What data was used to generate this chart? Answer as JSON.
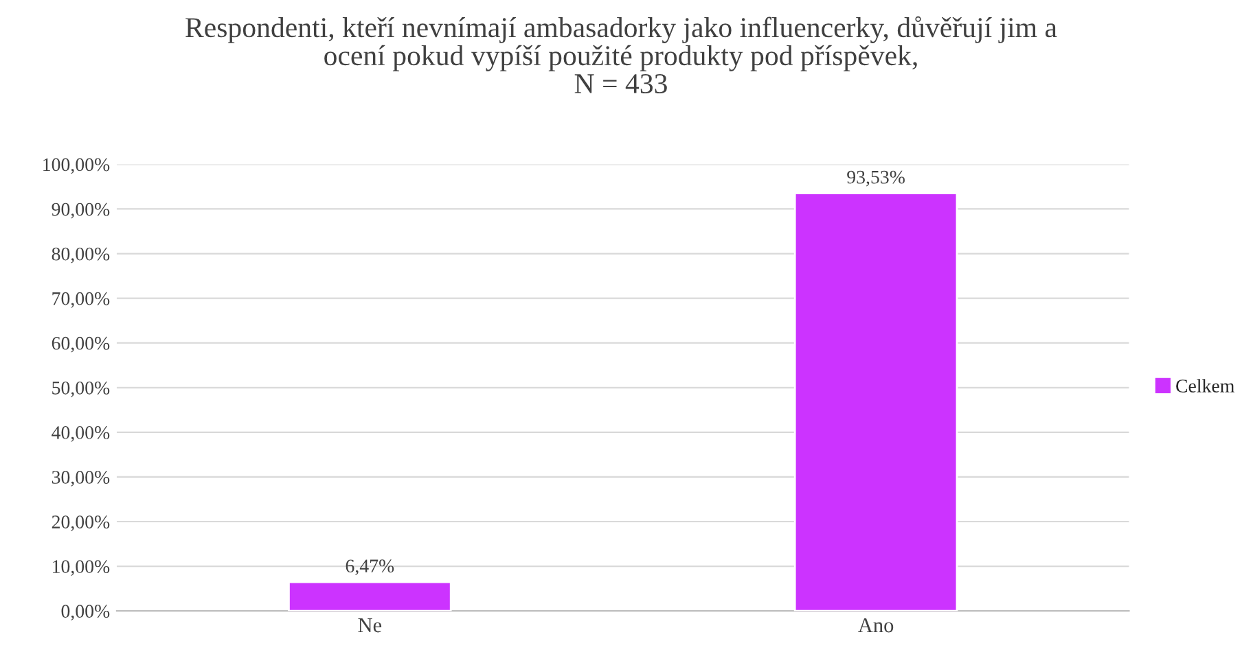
{
  "chart_data": {
    "type": "bar",
    "title": "Respondenti, kteří nevnímají ambasadorky jako influencerky, důvěřují jim a\nocení pokud vypíší použité produkty pod příspěvek,\nN = 433",
    "categories": [
      "Ne",
      "Ano"
    ],
    "series": [
      {
        "name": "Celkem",
        "color": "#cc33ff",
        "values": [
          6.47,
          93.53
        ],
        "value_labels": [
          "6,47%",
          "93,53%"
        ]
      }
    ],
    "ylim": [
      0,
      100
    ],
    "yticks": [
      {
        "value": 0,
        "label": "0,00%"
      },
      {
        "value": 10,
        "label": "10,00%"
      },
      {
        "value": 20,
        "label": "20,00%"
      },
      {
        "value": 30,
        "label": "30,00%"
      },
      {
        "value": 40,
        "label": "40,00%"
      },
      {
        "value": 50,
        "label": "50,00%"
      },
      {
        "value": 60,
        "label": "60,00%"
      },
      {
        "value": 70,
        "label": "70,00%"
      },
      {
        "value": 80,
        "label": "80,00%"
      },
      {
        "value": 90,
        "label": "90,00%"
      },
      {
        "value": 100,
        "label": "100,00%"
      }
    ],
    "grid": "y",
    "legend": "right"
  }
}
